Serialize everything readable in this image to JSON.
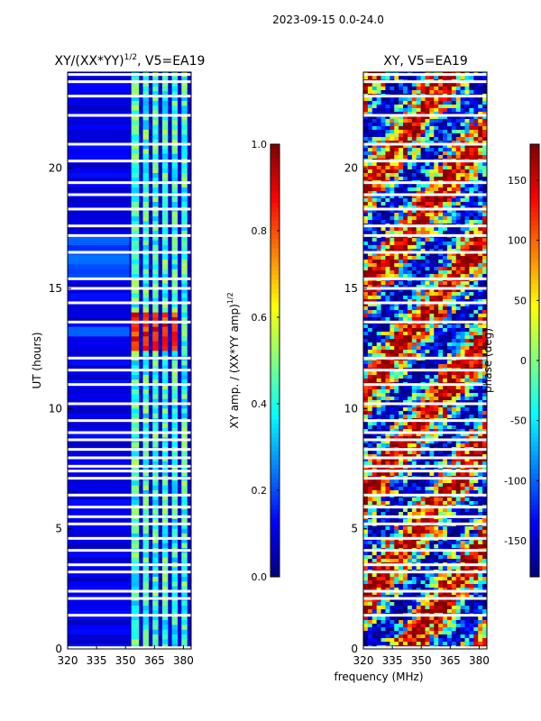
{
  "figure": {
    "suptitle": "2023-09-15 0.0-24.0",
    "xlabel_shared": "frequency (MHz)"
  },
  "chart_data": [
    {
      "type": "heatmap",
      "title": "XY/(XX*YY)",
      "title_exponent": "1/2",
      "title_suffix": ", V5=EA19",
      "xlabel": "",
      "ylabel": "UT (hours)",
      "x_ticks": [
        "320",
        "335",
        "350",
        "365",
        "380"
      ],
      "x_tick_values": [
        320,
        335,
        350,
        365,
        380
      ],
      "y_ticks": [
        "0",
        "5",
        "10",
        "15",
        "20"
      ],
      "y_tick_values": [
        0,
        5,
        10,
        15,
        20
      ],
      "xlim": [
        320,
        384
      ],
      "ylim": [
        0,
        24
      ],
      "colorbar": {
        "label": "XY amp. / (XX*YY amp)",
        "label_exponent": "1/2",
        "ticks": [
          "0.0",
          "0.2",
          "0.4",
          "0.6",
          "0.8",
          "1.0"
        ],
        "tick_values": [
          0.0,
          0.2,
          0.4,
          0.6,
          0.8,
          1.0
        ],
        "range": [
          0,
          1
        ],
        "colormap": "jet"
      },
      "gaps_hours": [
        0.05,
        1.4,
        2.1,
        2.4,
        3.2,
        3.5,
        4.1,
        4.6,
        5.2,
        5.5,
        5.9,
        6.4,
        7.1,
        7.4,
        7.6,
        7.95,
        8.3,
        8.7,
        9.0,
        9.5,
        10.2,
        11.0,
        11.6,
        12.1,
        13.6,
        14.4,
        15.0,
        15.4,
        16.5,
        17.2,
        17.6,
        18.3,
        18.9,
        19.4,
        20.3,
        21.0,
        22.2,
        23.0,
        23.6,
        23.9
      ],
      "bright_channels_mhz": [
        [
          353,
          357
        ],
        [
          359,
          362
        ],
        [
          364,
          367
        ],
        [
          369,
          372
        ],
        [
          374,
          377
        ],
        [
          379,
          382
        ]
      ],
      "noted_features": "High amplitude (red/yellow) near 353-377 MHz between 12.3-14.0 UT"
    },
    {
      "type": "heatmap",
      "title": "XY, V5=EA19",
      "xlabel": "frequency (MHz)",
      "ylabel": "",
      "x_ticks": [
        "320",
        "335",
        "350",
        "365",
        "380"
      ],
      "x_tick_values": [
        320,
        335,
        350,
        365,
        380
      ],
      "y_ticks": [
        "0",
        "5",
        "10",
        "15",
        "20"
      ],
      "y_tick_values": [
        0,
        5,
        10,
        15,
        20
      ],
      "xlim": [
        320,
        384
      ],
      "ylim": [
        0,
        24
      ],
      "colorbar": {
        "label": "phase (deg)",
        "ticks": [
          "-150",
          "-100",
          "-50",
          "0",
          "50",
          "100",
          "150"
        ],
        "tick_values": [
          -150,
          -100,
          -50,
          0,
          50,
          100,
          150
        ],
        "range": [
          -180,
          180
        ],
        "colormap": "jet"
      },
      "gaps_hours": [
        0.05,
        1.4,
        2.1,
        2.4,
        3.2,
        3.5,
        4.1,
        4.6,
        5.2,
        5.5,
        5.9,
        6.4,
        7.1,
        7.4,
        7.6,
        7.95,
        8.3,
        8.7,
        9.0,
        9.5,
        10.2,
        11.0,
        11.6,
        12.1,
        13.6,
        14.4,
        15.0,
        15.4,
        16.5,
        17.2,
        17.6,
        18.3,
        18.9,
        19.4,
        20.3,
        21.0,
        22.2,
        23.0,
        23.6,
        23.9
      ]
    }
  ]
}
